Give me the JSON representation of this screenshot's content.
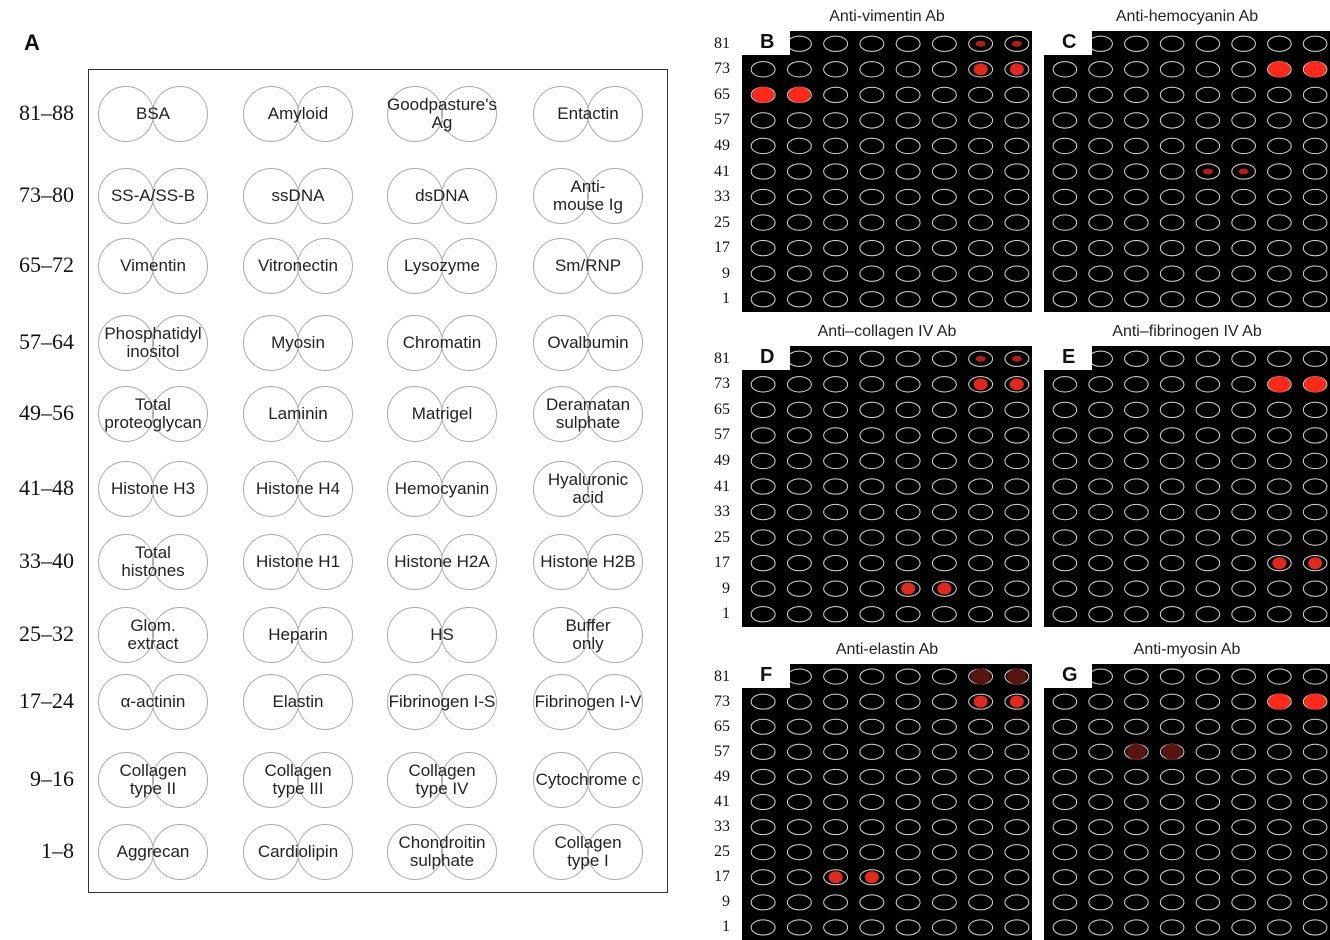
{
  "panel_a": {
    "letter": "A",
    "rows": [
      {
        "label": "81–88",
        "cells": [
          [
            "BSA"
          ],
          [
            "Amyloid"
          ],
          [
            "Goodpasture's",
            "Ag"
          ],
          [
            "Entactin"
          ]
        ]
      },
      {
        "label": "73–80",
        "cells": [
          [
            "SS-A/SS-B"
          ],
          [
            "ssDNA"
          ],
          [
            "dsDNA"
          ],
          [
            "Anti-",
            "mouse Ig"
          ]
        ]
      },
      {
        "label": "65–72",
        "cells": [
          [
            "Vimentin"
          ],
          [
            "Vitronectin"
          ],
          [
            "Lysozyme"
          ],
          [
            "Sm/RNP"
          ]
        ]
      },
      {
        "label": "57–64",
        "cells": [
          [
            "Phosphatidyl",
            "inositol"
          ],
          [
            "Myosin"
          ],
          [
            "Chromatin"
          ],
          [
            "Ovalbumin"
          ]
        ]
      },
      {
        "label": "49–56",
        "cells": [
          [
            "Total",
            "proteoglycan"
          ],
          [
            "Laminin"
          ],
          [
            "Matrigel"
          ],
          [
            "Deramatan",
            "sulphate"
          ]
        ]
      },
      {
        "label": "41–48",
        "cells": [
          [
            "Histone H3"
          ],
          [
            "Histone H4"
          ],
          [
            "Hemocyanin"
          ],
          [
            "Hyaluronic",
            "acid"
          ]
        ]
      },
      {
        "label": "33–40",
        "cells": [
          [
            "Total",
            "histones"
          ],
          [
            "Histone H1"
          ],
          [
            "Histone H2A"
          ],
          [
            "Histone H2B"
          ]
        ]
      },
      {
        "label": "25–32",
        "cells": [
          [
            "Glom.",
            "extract"
          ],
          [
            "Heparin"
          ],
          [
            "HS"
          ],
          [
            "Buffer",
            "only"
          ]
        ]
      },
      {
        "label": "17–24",
        "cells": [
          [
            "α-actinin"
          ],
          [
            "Elastin"
          ],
          [
            "Fibrinogen I-S"
          ],
          [
            "Fibrinogen I-V"
          ]
        ]
      },
      {
        "label": "9–16",
        "cells": [
          [
            "Collagen",
            "type II"
          ],
          [
            "Collagen",
            "type III"
          ],
          [
            "Collagen",
            "type IV"
          ],
          [
            "Cytochrome c"
          ]
        ]
      },
      {
        "label": "1–8",
        "cells": [
          [
            "Aggrecan"
          ],
          [
            "Cardiolipin"
          ],
          [
            "Chondroitin",
            "sulphate"
          ],
          [
            "Collagen",
            "type I"
          ]
        ]
      }
    ]
  },
  "array_row_labels": [
    "81",
    "73",
    "65",
    "57",
    "49",
    "41",
    "33",
    "25",
    "17",
    "9",
    "1"
  ],
  "arrays": [
    {
      "letter": "B",
      "title": "Anti-vimentin Ab",
      "spots": [
        {
          "row": "81",
          "cols": [
            7,
            8
          ],
          "strength": "weak"
        },
        {
          "row": "73",
          "cols": [
            7,
            8
          ],
          "strength": "medium"
        },
        {
          "row": "65",
          "cols": [
            1,
            2
          ],
          "strength": "strong"
        }
      ]
    },
    {
      "letter": "C",
      "title": "Anti-hemocyanin Ab",
      "spots": [
        {
          "row": "73",
          "cols": [
            7,
            8
          ],
          "strength": "strong"
        },
        {
          "row": "41",
          "cols": [
            5,
            6
          ],
          "strength": "weak"
        }
      ]
    },
    {
      "letter": "D",
      "title": "Anti–collagen IV Ab",
      "spots": [
        {
          "row": "81",
          "cols": [
            7,
            8
          ],
          "strength": "weak"
        },
        {
          "row": "73",
          "cols": [
            7,
            8
          ],
          "strength": "medium"
        },
        {
          "row": "9",
          "cols": [
            5,
            6
          ],
          "strength": "medium"
        }
      ]
    },
    {
      "letter": "E",
      "title": "Anti–fibrinogen IV Ab",
      "spots": [
        {
          "row": "73",
          "cols": [
            7,
            8
          ],
          "strength": "strong"
        },
        {
          "row": "17",
          "cols": [
            7,
            8
          ],
          "strength": "medium"
        }
      ]
    },
    {
      "letter": "F",
      "title": "Anti-elastin Ab",
      "spots": [
        {
          "row": "81",
          "cols": [
            7,
            8
          ],
          "strength": "faint"
        },
        {
          "row": "73",
          "cols": [
            7,
            8
          ],
          "strength": "medium"
        },
        {
          "row": "17",
          "cols": [
            3,
            4
          ],
          "strength": "medium"
        }
      ]
    },
    {
      "letter": "G",
      "title": "Anti-myosin Ab",
      "spots": [
        {
          "row": "73",
          "cols": [
            7,
            8
          ],
          "strength": "strong"
        },
        {
          "row": "57",
          "cols": [
            3,
            4
          ],
          "strength": "faint"
        }
      ]
    }
  ],
  "colors": {
    "spot_strong": "#ff2a1a",
    "spot_medium": "#e0281c",
    "spot_weak": "#b01e14",
    "spot_faint": "#5a1410",
    "ring": "#d8d8d8",
    "background": "#000000"
  }
}
